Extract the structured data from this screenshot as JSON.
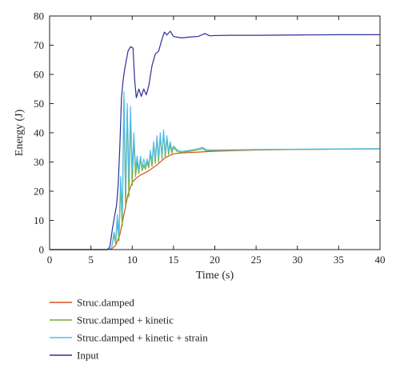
{
  "chart_data": {
    "type": "line",
    "title": "",
    "xlabel": "Time (s)",
    "ylabel": "Energy (J)",
    "xlim": [
      0,
      40
    ],
    "ylim": [
      0,
      80
    ],
    "xticks": [
      0,
      5,
      10,
      15,
      20,
      25,
      30,
      35,
      40
    ],
    "yticks": [
      0,
      10,
      20,
      30,
      40,
      50,
      60,
      70,
      80
    ],
    "grid": false,
    "legend_position": "below",
    "series": [
      {
        "name": "Struc.damped",
        "color": "#d9531e",
        "points": [
          [
            0,
            0
          ],
          [
            7,
            0
          ],
          [
            7.5,
            0.2
          ],
          [
            8,
            1.5
          ],
          [
            8.5,
            5
          ],
          [
            9,
            12
          ],
          [
            9.5,
            19
          ],
          [
            10,
            23
          ],
          [
            10.5,
            24.5
          ],
          [
            11,
            25.5
          ],
          [
            12,
            27
          ],
          [
            13,
            29
          ],
          [
            14,
            31.5
          ],
          [
            15,
            32.8
          ],
          [
            16,
            33.1
          ],
          [
            18,
            33.4
          ],
          [
            20,
            33.7
          ],
          [
            25,
            34.1
          ],
          [
            30,
            34.3
          ],
          [
            35,
            34.4
          ],
          [
            40,
            34.5
          ]
        ]
      },
      {
        "name": "Struc.damped + kinetic",
        "color": "#77ac30",
        "points": [
          [
            0,
            0
          ],
          [
            7,
            0
          ],
          [
            7.5,
            0.5
          ],
          [
            7.8,
            5
          ],
          [
            8,
            2
          ],
          [
            8.2,
            10
          ],
          [
            8.4,
            3
          ],
          [
            8.6,
            22
          ],
          [
            8.8,
            8
          ],
          [
            9,
            52
          ],
          [
            9.2,
            14
          ],
          [
            9.4,
            48
          ],
          [
            9.6,
            18
          ],
          [
            9.8,
            46
          ],
          [
            10,
            22
          ],
          [
            10.2,
            38
          ],
          [
            10.4,
            25
          ],
          [
            10.6,
            30
          ],
          [
            10.8,
            26
          ],
          [
            11,
            31
          ],
          [
            11.2,
            27
          ],
          [
            11.4,
            29
          ],
          [
            11.6,
            27.5
          ],
          [
            11.8,
            30
          ],
          [
            12,
            28
          ],
          [
            12.2,
            33
          ],
          [
            12.4,
            28.5
          ],
          [
            12.6,
            36
          ],
          [
            12.8,
            29.5
          ],
          [
            13,
            38
          ],
          [
            13.2,
            30
          ],
          [
            13.4,
            39
          ],
          [
            13.6,
            31
          ],
          [
            13.8,
            40
          ],
          [
            14,
            31.5
          ],
          [
            14.2,
            38
          ],
          [
            14.4,
            32.5
          ],
          [
            14.6,
            36
          ],
          [
            14.8,
            33
          ],
          [
            15,
            35
          ],
          [
            15.5,
            33.5
          ],
          [
            16,
            33.3
          ],
          [
            17,
            33.7
          ],
          [
            18,
            34.2
          ],
          [
            18.5,
            34.6
          ],
          [
            19,
            33.8
          ],
          [
            20,
            34
          ],
          [
            22,
            34
          ],
          [
            25,
            34.2
          ],
          [
            30,
            34.3
          ],
          [
            35,
            34.4
          ],
          [
            40,
            34.5
          ]
        ]
      },
      {
        "name": "Struc.damped + kinetic + strain",
        "color": "#4dbeee",
        "points": [
          [
            0,
            0
          ],
          [
            7,
            0
          ],
          [
            7.5,
            0.5
          ],
          [
            7.8,
            6
          ],
          [
            8,
            3
          ],
          [
            8.2,
            12
          ],
          [
            8.4,
            5
          ],
          [
            8.6,
            25
          ],
          [
            8.8,
            12
          ],
          [
            9,
            54
          ],
          [
            9.2,
            20
          ],
          [
            9.4,
            50
          ],
          [
            9.6,
            24
          ],
          [
            9.8,
            49
          ],
          [
            10,
            27
          ],
          [
            10.2,
            40
          ],
          [
            10.4,
            28
          ],
          [
            10.6,
            32
          ],
          [
            10.8,
            27
          ],
          [
            11,
            32
          ],
          [
            11.2,
            28
          ],
          [
            11.4,
            31
          ],
          [
            11.6,
            28.5
          ],
          [
            11.8,
            31
          ],
          [
            12,
            29
          ],
          [
            12.2,
            34
          ],
          [
            12.4,
            30
          ],
          [
            12.6,
            37
          ],
          [
            12.8,
            31
          ],
          [
            13,
            39
          ],
          [
            13.2,
            31.5
          ],
          [
            13.4,
            40
          ],
          [
            13.6,
            32
          ],
          [
            13.8,
            41
          ],
          [
            14,
            33
          ],
          [
            14.2,
            39
          ],
          [
            14.4,
            33.5
          ],
          [
            14.6,
            37
          ],
          [
            14.8,
            34
          ],
          [
            15,
            35.5
          ],
          [
            15.5,
            34
          ],
          [
            16,
            33.6
          ],
          [
            17,
            34
          ],
          [
            18,
            34.6
          ],
          [
            18.5,
            35
          ],
          [
            19,
            34.2
          ],
          [
            20,
            34.1
          ],
          [
            22,
            34.2
          ],
          [
            25,
            34.3
          ],
          [
            30,
            34.4
          ],
          [
            35,
            34.5
          ],
          [
            40,
            34.6
          ]
        ]
      },
      {
        "name": "Input",
        "color": "#2e2e9e",
        "points": [
          [
            0,
            0
          ],
          [
            7,
            0
          ],
          [
            7.3,
            1
          ],
          [
            7.6,
            7
          ],
          [
            7.9,
            12
          ],
          [
            8.1,
            15
          ],
          [
            8.3,
            22
          ],
          [
            8.5,
            35
          ],
          [
            8.7,
            52
          ],
          [
            8.9,
            58
          ],
          [
            9.1,
            62
          ],
          [
            9.3,
            65
          ],
          [
            9.5,
            68
          ],
          [
            9.8,
            69.5
          ],
          [
            10.1,
            69
          ],
          [
            10.3,
            58
          ],
          [
            10.5,
            52
          ],
          [
            10.8,
            55
          ],
          [
            11.1,
            52.5
          ],
          [
            11.4,
            55
          ],
          [
            11.7,
            53
          ],
          [
            12,
            56
          ],
          [
            12.4,
            63
          ],
          [
            12.8,
            67
          ],
          [
            13.2,
            68
          ],
          [
            13.6,
            72
          ],
          [
            13.9,
            74.5
          ],
          [
            14.2,
            73.5
          ],
          [
            14.6,
            74.8
          ],
          [
            15,
            73
          ],
          [
            16,
            72.5
          ],
          [
            17,
            72.8
          ],
          [
            18,
            73
          ],
          [
            18.8,
            74
          ],
          [
            19.4,
            73.2
          ],
          [
            20,
            73.3
          ],
          [
            22,
            73.4
          ],
          [
            25,
            73.4
          ],
          [
            30,
            73.5
          ],
          [
            35,
            73.6
          ],
          [
            40,
            73.6
          ]
        ]
      }
    ]
  }
}
